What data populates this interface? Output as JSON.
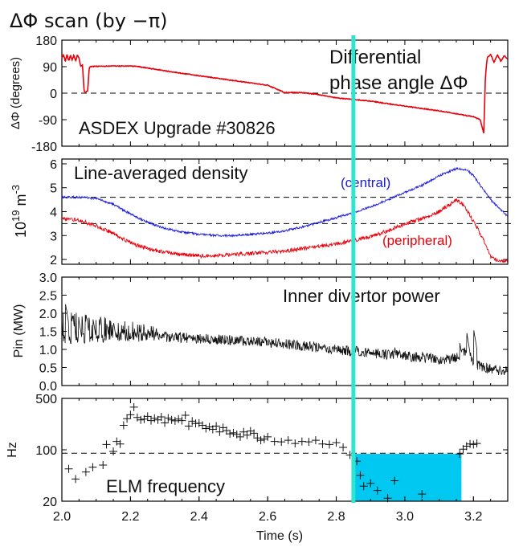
{
  "figure_title": "ΔΦ scan (by −π)",
  "colors": {
    "phase": "#e8000b",
    "central": "#1a1adb",
    "peripheral": "#e8000b",
    "divertor": "#111111",
    "elm": "#111111",
    "marker_line": "#2ee6cf",
    "highlight_box": "#00c8f0"
  },
  "chart_data": [
    {
      "type": "line",
      "title": "Differential phase angle ΔΦ",
      "title_lines": [
        "Differential",
        "phase angle ΔΦ"
      ],
      "annotation": "ASDEX Upgrade #30826",
      "ylabel": "ΔΦ (degrees)",
      "xlim": [
        2.0,
        3.3
      ],
      "ylim": [
        -180,
        180
      ],
      "yticks": [
        180,
        90,
        0,
        -90,
        -180
      ],
      "ytick_labels": [
        "180",
        "90",
        "0",
        "-90",
        "-180"
      ],
      "reference_line": 0,
      "series": [
        {
          "name": "ΔΦ",
          "x": [
            2.0,
            2.005,
            2.01,
            2.015,
            2.02,
            2.025,
            2.03,
            2.035,
            2.04,
            2.045,
            2.05,
            2.055,
            2.06,
            2.065,
            2.07,
            2.075,
            2.08,
            2.085,
            2.09,
            2.1,
            2.15,
            2.2,
            2.22,
            2.3,
            2.4,
            2.5,
            2.6,
            2.65,
            2.7,
            2.75,
            2.8,
            2.9,
            3.0,
            3.1,
            3.15,
            3.2,
            3.22,
            3.225,
            3.23,
            3.235,
            3.24,
            3.25,
            3.26,
            3.27,
            3.28,
            3.29,
            3.3
          ],
          "y": [
            120,
            130,
            108,
            132,
            110,
            128,
            112,
            130,
            108,
            128,
            120,
            90,
            95,
            5,
            5,
            6,
            88,
            90,
            91,
            91,
            92,
            92,
            91,
            76,
            59,
            43,
            27,
            2,
            2,
            -5,
            -16,
            -27,
            -44,
            -60,
            -70,
            -80,
            -90,
            -115,
            -135,
            60,
            120,
            132,
            105,
            130,
            108,
            128,
            115
          ]
        }
      ]
    },
    {
      "type": "line",
      "title": "Line-averaged density",
      "ylabel": "10¹⁹ m⁻³",
      "ylabel_parts": [
        "10",
        "19",
        "m",
        "-3"
      ],
      "xlim": [
        2.0,
        3.3
      ],
      "ylim": [
        1.8,
        6.2
      ],
      "yticks": [
        2,
        3,
        4,
        5,
        6
      ],
      "ytick_labels": [
        "2",
        "3",
        "4",
        "5",
        "6"
      ],
      "reference_lines": [
        4.6,
        3.5
      ],
      "series": [
        {
          "name": "(central)",
          "x": [
            2.0,
            2.05,
            2.1,
            2.15,
            2.2,
            2.25,
            2.3,
            2.35,
            2.4,
            2.45,
            2.5,
            2.55,
            2.6,
            2.65,
            2.7,
            2.75,
            2.8,
            2.85,
            2.9,
            2.95,
            3.0,
            3.05,
            3.1,
            3.15,
            3.18,
            3.2,
            3.22,
            3.25,
            3.3
          ],
          "y": [
            4.6,
            4.6,
            4.55,
            4.3,
            3.9,
            3.55,
            3.3,
            3.15,
            3.05,
            3.0,
            3.0,
            3.05,
            3.1,
            3.2,
            3.35,
            3.55,
            3.75,
            3.95,
            4.2,
            4.5,
            4.8,
            5.1,
            5.5,
            5.8,
            5.75,
            5.5,
            5.1,
            4.5,
            3.8
          ]
        },
        {
          "name": "(peripheral)",
          "x": [
            2.0,
            2.05,
            2.1,
            2.15,
            2.2,
            2.25,
            2.3,
            2.35,
            2.4,
            2.45,
            2.5,
            2.55,
            2.6,
            2.65,
            2.7,
            2.75,
            2.8,
            2.85,
            2.9,
            2.95,
            3.0,
            3.05,
            3.1,
            3.15,
            3.17,
            3.2,
            3.23,
            3.25,
            3.27,
            3.3
          ],
          "y": [
            3.7,
            3.65,
            3.4,
            3.1,
            2.7,
            2.45,
            2.3,
            2.2,
            2.15,
            2.15,
            2.2,
            2.25,
            2.3,
            2.35,
            2.45,
            2.55,
            2.65,
            2.8,
            2.95,
            3.2,
            3.5,
            3.7,
            4.0,
            4.5,
            4.3,
            3.6,
            2.8,
            2.1,
            1.95,
            1.95
          ]
        }
      ]
    },
    {
      "type": "line",
      "title": "Inner divertor power",
      "ylabel": "Pin (MW)",
      "xlim": [
        2.0,
        3.3
      ],
      "ylim": [
        0.0,
        3.0
      ],
      "yticks": [
        0.0,
        0.5,
        1.0,
        1.5,
        2.0,
        2.5,
        3.0
      ],
      "ytick_labels": [
        "0.0",
        "0.5",
        "1.0",
        "1.5",
        "2.0",
        "2.5",
        "3.0"
      ],
      "series": [
        {
          "name": "Pin",
          "x": [
            2.0,
            2.1,
            2.2,
            2.3,
            2.4,
            2.5,
            2.6,
            2.7,
            2.8,
            2.9,
            3.0,
            3.1,
            3.15,
            3.18,
            3.2,
            3.25,
            3.3
          ],
          "y": [
            1.5,
            1.45,
            1.45,
            1.35,
            1.3,
            1.25,
            1.2,
            1.1,
            1.0,
            0.9,
            0.82,
            0.72,
            0.75,
            1.0,
            0.6,
            0.45,
            0.4
          ],
          "spikes": [
            {
              "x": 2.01,
              "y": 2.3
            },
            {
              "x": 2.03,
              "y": 2.0
            },
            {
              "x": 2.05,
              "y": 1.8
            },
            {
              "x": 2.07,
              "y": 2.0
            },
            {
              "x": 2.09,
              "y": 1.9
            },
            {
              "x": 2.11,
              "y": 1.7
            },
            {
              "x": 2.13,
              "y": 1.75
            },
            {
              "x": 2.15,
              "y": 1.8
            },
            {
              "x": 2.18,
              "y": 1.6
            },
            {
              "x": 2.21,
              "y": 1.65
            },
            {
              "x": 2.25,
              "y": 1.6
            },
            {
              "x": 2.3,
              "y": 1.55
            },
            {
              "x": 2.86,
              "y": 1.1
            },
            {
              "x": 2.9,
              "y": 1.0
            },
            {
              "x": 2.97,
              "y": 1.1
            },
            {
              "x": 3.05,
              "y": 1.0
            },
            {
              "x": 3.16,
              "y": 1.2
            },
            {
              "x": 3.18,
              "y": 1.5
            },
            {
              "x": 3.2,
              "y": 1.6
            }
          ]
        }
      ]
    },
    {
      "type": "scatter",
      "title": "ELM frequency",
      "ylabel": "Hz",
      "xlabel": "Time (s)",
      "xlim": [
        2.0,
        3.3
      ],
      "xticks": [
        2.0,
        2.2,
        2.4,
        2.6,
        2.8,
        3.0,
        3.2
      ],
      "xtick_labels": [
        "2.0",
        "2.2",
        "2.4",
        "2.6",
        "2.8",
        "3.0",
        "3.2"
      ],
      "ylim": [
        20,
        500
      ],
      "yscale": "log",
      "yticks": [
        20,
        100,
        500
      ],
      "ytick_labels": [
        "20",
        "100",
        "500"
      ],
      "reference_line": 90,
      "highlight_region": {
        "x": [
          2.853,
          3.165
        ],
        "y": [
          20,
          88
        ]
      },
      "series": [
        {
          "name": "ELM",
          "x": [
            2.02,
            2.04,
            2.07,
            2.09,
            2.12,
            2.13,
            2.15,
            2.16,
            2.17,
            2.18,
            2.19,
            2.2,
            2.21,
            2.22,
            2.23,
            2.24,
            2.25,
            2.26,
            2.27,
            2.28,
            2.29,
            2.3,
            2.31,
            2.32,
            2.33,
            2.34,
            2.35,
            2.36,
            2.37,
            2.38,
            2.39,
            2.4,
            2.41,
            2.42,
            2.43,
            2.44,
            2.45,
            2.46,
            2.47,
            2.48,
            2.49,
            2.5,
            2.51,
            2.52,
            2.53,
            2.54,
            2.55,
            2.56,
            2.57,
            2.58,
            2.59,
            2.6,
            2.62,
            2.64,
            2.66,
            2.68,
            2.7,
            2.72,
            2.74,
            2.76,
            2.78,
            2.8,
            2.82,
            2.84,
            2.86,
            2.87,
            2.88,
            2.9,
            2.92,
            2.95,
            2.97,
            3.05,
            3.16,
            3.17,
            3.18,
            3.19,
            3.2,
            3.21
          ],
          "y": [
            55,
            40,
            50,
            58,
            62,
            118,
            95,
            130,
            120,
            215,
            265,
            300,
            380,
            275,
            255,
            262,
            285,
            250,
            268,
            255,
            280,
            232,
            270,
            255,
            248,
            262,
            250,
            295,
            210,
            245,
            228,
            230,
            215,
            195,
            205,
            190,
            210,
            175,
            200,
            182,
            165,
            170,
            162,
            150,
            175,
            158,
            180,
            168,
            145,
            135,
            140,
            150,
            130,
            128,
            135,
            122,
            130,
            128,
            135,
            120,
            118,
            125,
            108,
            85,
            70,
            45,
            32,
            35,
            28,
            22,
            38,
            25,
            88,
            102,
            112,
            120,
            118,
            122
          ]
        }
      ]
    }
  ],
  "marker_time": 2.85
}
